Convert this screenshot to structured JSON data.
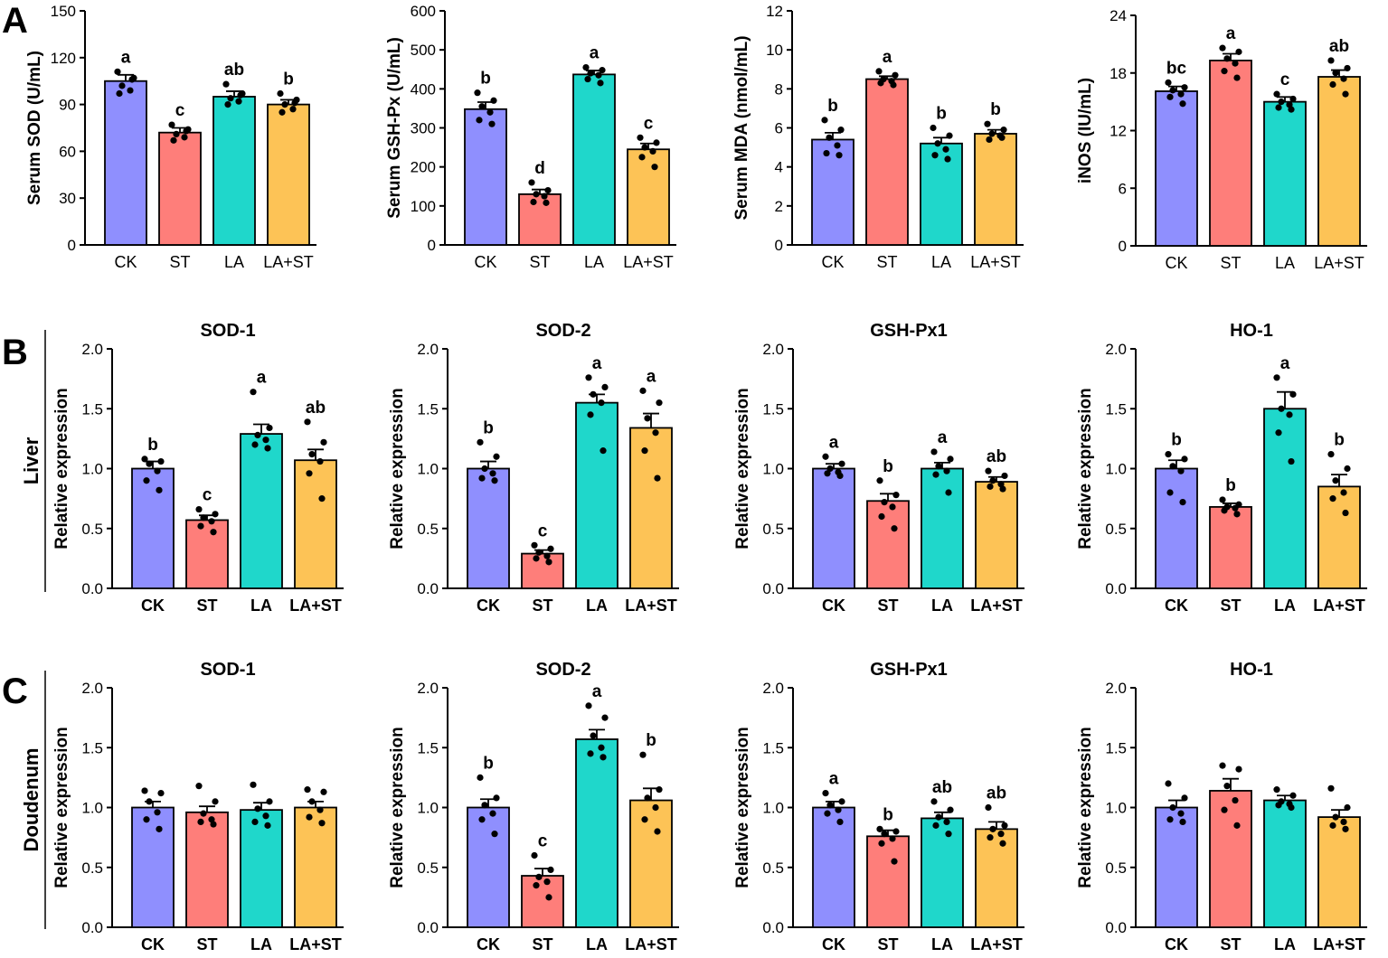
{
  "colors": {
    "CK": "#8f8ffe",
    "ST": "#fe7e7a",
    "LA": "#1fd7cb",
    "LA+ST": "#fdc356"
  },
  "panel_letters": [
    "A",
    "B",
    "C"
  ],
  "row_labels": [
    "Liver",
    "Doudenum"
  ],
  "chart_data": [
    {
      "type": "bar",
      "title": "",
      "ylabel": "Serum SOD (U/mL)",
      "ylim": [
        0,
        150
      ],
      "yticks": [
        "0",
        "30",
        "60",
        "90",
        "120",
        "150"
      ],
      "categories": [
        "CK",
        "ST",
        "LA",
        "LA+ST"
      ],
      "values": [
        105,
        72,
        95,
        90
      ],
      "sem": [
        4,
        3,
        3.5,
        3
      ],
      "letters": [
        "a",
        "c",
        "ab",
        "b"
      ],
      "points": [
        [
          111,
          107,
          102,
          99,
          97,
          106
        ],
        [
          77,
          74,
          71,
          69,
          67,
          73
        ],
        [
          103,
          97,
          94,
          92,
          90,
          96
        ],
        [
          97,
          93,
          90,
          87,
          85,
          91
        ]
      ]
    },
    {
      "type": "bar",
      "title": "",
      "ylabel": "Serum GSH-Px (U/mL)",
      "ylim": [
        0,
        600
      ],
      "yticks": [
        "0",
        "100",
        "200",
        "300",
        "400",
        "500",
        "600"
      ],
      "categories": [
        "CK",
        "ST",
        "LA",
        "LA+ST"
      ],
      "values": [
        348,
        130,
        437,
        245
      ],
      "sem": [
        18,
        12,
        10,
        15
      ],
      "letters": [
        "b",
        "d",
        "a",
        "c"
      ],
      "points": [
        [
          390,
          370,
          355,
          340,
          320,
          310
        ],
        [
          160,
          140,
          130,
          125,
          110,
          108
        ],
        [
          455,
          448,
          440,
          435,
          425,
          415
        ],
        [
          275,
          262,
          250,
          240,
          225,
          200
        ]
      ]
    },
    {
      "type": "bar",
      "title": "",
      "ylabel": "Serum MDA (nmol/mL)",
      "ylim": [
        0,
        12
      ],
      "yticks": [
        "0",
        "2",
        "4",
        "6",
        "8",
        "10",
        "12"
      ],
      "categories": [
        "CK",
        "ST",
        "LA",
        "LA+ST"
      ],
      "values": [
        5.4,
        8.5,
        5.2,
        5.7
      ],
      "sem": [
        0.35,
        0.15,
        0.3,
        0.2
      ],
      "letters": [
        "b",
        "a",
        "b",
        "b"
      ],
      "points": [
        [
          6.4,
          5.9,
          5.5,
          5.1,
          4.7,
          4.6
        ],
        [
          8.9,
          8.7,
          8.5,
          8.4,
          8.3,
          8.2
        ],
        [
          6.0,
          5.6,
          5.2,
          4.9,
          4.6,
          4.4
        ],
        [
          6.2,
          5.9,
          5.7,
          5.6,
          5.4,
          5.5
        ]
      ]
    },
    {
      "type": "bar",
      "title": "",
      "ylabel": "iNOS (IU/mL)",
      "ylim": [
        0,
        24
      ],
      "yticks": [
        "0",
        "6",
        "12",
        "18",
        "24"
      ],
      "categories": [
        "CK",
        "ST",
        "LA",
        "LA+ST"
      ],
      "values": [
        16.1,
        19.3,
        15.0,
        17.6
      ],
      "sem": [
        0.5,
        0.7,
        0.5,
        0.7
      ],
      "letters": [
        "bc",
        "a",
        "c",
        "ab"
      ],
      "points": [
        [
          17.0,
          16.5,
          16.2,
          15.8,
          15.5,
          14.8
        ],
        [
          20.6,
          20.2,
          19.5,
          19.0,
          18.2,
          17.5
        ],
        [
          15.8,
          15.3,
          15.0,
          14.7,
          14.4,
          14.2
        ],
        [
          19.3,
          18.5,
          18.0,
          17.4,
          16.8,
          15.8
        ]
      ]
    },
    {
      "type": "bar",
      "title": "SOD-1",
      "ylabel": "Relative expression",
      "ylim": [
        0,
        2
      ],
      "yticks": [
        "0.0",
        "0.5",
        "1.0",
        "1.5",
        "2.0"
      ],
      "categories": [
        "CK",
        "ST",
        "LA",
        "LA+ST"
      ],
      "values": [
        1.0,
        0.57,
        1.29,
        1.07
      ],
      "sem": [
        0.06,
        0.04,
        0.08,
        0.09
      ],
      "letters": [
        "b",
        "c",
        "a",
        "ab"
      ],
      "points": [
        [
          1.08,
          1.06,
          1.04,
          0.98,
          0.9,
          0.82
        ],
        [
          0.66,
          0.62,
          0.59,
          0.56,
          0.52,
          0.47
        ],
        [
          1.64,
          1.34,
          1.28,
          1.24,
          1.2,
          1.17
        ],
        [
          1.39,
          1.22,
          1.12,
          1.06,
          0.96,
          0.75
        ]
      ]
    },
    {
      "type": "bar",
      "title": "SOD-2",
      "ylabel": "Relative expression",
      "ylim": [
        0,
        2
      ],
      "yticks": [
        "0.0",
        "0.5",
        "1.0",
        "1.5",
        "2.0"
      ],
      "categories": [
        "CK",
        "ST",
        "LA",
        "LA+ST"
      ],
      "values": [
        1.0,
        0.29,
        1.55,
        1.34
      ],
      "sem": [
        0.06,
        0.03,
        0.07,
        0.12
      ],
      "letters": [
        "b",
        "c",
        "a",
        "a"
      ],
      "points": [
        [
          1.22,
          1.1,
          1.0,
          0.96,
          0.92,
          0.9
        ],
        [
          0.36,
          0.33,
          0.3,
          0.27,
          0.25,
          0.22
        ],
        [
          1.76,
          1.68,
          1.62,
          1.55,
          1.45,
          1.15
        ],
        [
          1.65,
          1.55,
          1.42,
          1.3,
          1.15,
          0.92
        ]
      ]
    },
    {
      "type": "bar",
      "title": "GSH-Px1",
      "ylabel": "Relative expression",
      "ylim": [
        0,
        2
      ],
      "yticks": [
        "0.0",
        "0.5",
        "1.0",
        "1.5",
        "2.0"
      ],
      "categories": [
        "CK",
        "ST",
        "LA",
        "LA+ST"
      ],
      "values": [
        1.0,
        0.73,
        1.0,
        0.89
      ],
      "sem": [
        0.04,
        0.06,
        0.05,
        0.04
      ],
      "letters": [
        "a",
        "b",
        "a",
        "ab"
      ],
      "points": [
        [
          1.1,
          1.04,
          1.0,
          0.97,
          0.96,
          0.94
        ],
        [
          0.9,
          0.78,
          0.72,
          0.68,
          0.6,
          0.5
        ],
        [
          1.14,
          1.08,
          1.02,
          0.98,
          0.95,
          0.8
        ],
        [
          0.98,
          0.94,
          0.9,
          0.87,
          0.85,
          0.83
        ]
      ]
    },
    {
      "type": "bar",
      "title": "HO-1",
      "ylabel": "Relative expression",
      "ylim": [
        0,
        2
      ],
      "yticks": [
        "0.0",
        "0.5",
        "1.0",
        "1.5",
        "2.0"
      ],
      "categories": [
        "CK",
        "ST",
        "LA",
        "LA+ST"
      ],
      "values": [
        1.0,
        0.68,
        1.5,
        0.85
      ],
      "sem": [
        0.07,
        0.03,
        0.14,
        0.1
      ],
      "letters": [
        "b",
        "b",
        "a",
        "b"
      ],
      "points": [
        [
          1.12,
          1.08,
          1.02,
          0.98,
          0.8,
          0.72
        ],
        [
          0.74,
          0.7,
          0.68,
          0.67,
          0.65,
          0.62
        ],
        [
          1.76,
          1.62,
          1.5,
          1.45,
          1.3,
          1.06
        ],
        [
          1.12,
          1.0,
          0.9,
          0.8,
          0.75,
          0.63
        ]
      ]
    },
    {
      "type": "bar",
      "title": "SOD-1",
      "ylabel": "Relative expression",
      "ylim": [
        0,
        2
      ],
      "yticks": [
        "0.0",
        "0.5",
        "1.0",
        "1.5",
        "2.0"
      ],
      "categories": [
        "CK",
        "ST",
        "LA",
        "LA+ST"
      ],
      "values": [
        1.0,
        0.96,
        0.98,
        1.0
      ],
      "sem": [
        0.05,
        0.05,
        0.06,
        0.05
      ],
      "letters": [
        "",
        "",
        "",
        ""
      ],
      "points": [
        [
          1.14,
          1.12,
          1.05,
          0.96,
          0.9,
          0.82
        ],
        [
          1.18,
          1.05,
          0.95,
          0.9,
          0.88,
          0.86
        ],
        [
          1.19,
          1.05,
          0.99,
          0.93,
          0.88,
          0.85
        ],
        [
          1.15,
          1.13,
          1.05,
          0.98,
          0.92,
          0.87
        ]
      ]
    },
    {
      "type": "bar",
      "title": "SOD-2",
      "ylabel": "Relative expression",
      "ylim": [
        0,
        2
      ],
      "yticks": [
        "0.0",
        "0.5",
        "1.0",
        "1.5",
        "2.0"
      ],
      "categories": [
        "CK",
        "ST",
        "LA",
        "LA+ST"
      ],
      "values": [
        1.0,
        0.43,
        1.57,
        1.06
      ],
      "sem": [
        0.07,
        0.06,
        0.08,
        0.1
      ],
      "letters": [
        "b",
        "c",
        "a",
        "b"
      ],
      "points": [
        [
          1.25,
          1.08,
          1.02,
          0.95,
          0.9,
          0.78
        ],
        [
          0.6,
          0.48,
          0.42,
          0.38,
          0.35,
          0.25
        ],
        [
          1.85,
          1.75,
          1.6,
          1.5,
          1.45,
          1.42
        ],
        [
          1.44,
          1.15,
          1.08,
          1.0,
          0.9,
          0.8
        ]
      ]
    },
    {
      "type": "bar",
      "title": "GSH-Px1",
      "ylabel": "Relative expression",
      "ylim": [
        0,
        2
      ],
      "yticks": [
        "0.0",
        "0.5",
        "1.0",
        "1.5",
        "2.0"
      ],
      "categories": [
        "CK",
        "ST",
        "LA",
        "LA+ST"
      ],
      "values": [
        1.0,
        0.76,
        0.91,
        0.82
      ],
      "sem": [
        0.05,
        0.05,
        0.05,
        0.06
      ],
      "letters": [
        "a",
        "b",
        "ab",
        "ab"
      ],
      "points": [
        [
          1.12,
          1.05,
          1.02,
          0.98,
          0.95,
          0.88
        ],
        [
          0.82,
          0.8,
          0.78,
          0.74,
          0.7,
          0.55
        ],
        [
          1.05,
          0.98,
          0.92,
          0.88,
          0.85,
          0.78
        ],
        [
          1.0,
          0.85,
          0.82,
          0.78,
          0.75,
          0.7
        ]
      ]
    },
    {
      "type": "bar",
      "title": "HO-1",
      "ylabel": "Relative expression",
      "ylim": [
        0,
        2
      ],
      "yticks": [
        "0.0",
        "0.5",
        "1.0",
        "1.5",
        "2.0"
      ],
      "categories": [
        "CK",
        "ST",
        "LA",
        "LA+ST"
      ],
      "values": [
        1.0,
        1.14,
        1.06,
        0.92
      ],
      "sem": [
        0.06,
        0.1,
        0.04,
        0.06
      ],
      "letters": [
        "",
        "",
        "",
        ""
      ],
      "points": [
        [
          1.2,
          1.08,
          1.0,
          0.95,
          0.9,
          0.88
        ],
        [
          1.35,
          1.32,
          1.18,
          1.06,
          0.98,
          0.85
        ],
        [
          1.15,
          1.1,
          1.05,
          1.03,
          1.02,
          1.0
        ],
        [
          1.16,
          1.0,
          0.92,
          0.88,
          0.85,
          0.82
        ]
      ]
    }
  ]
}
